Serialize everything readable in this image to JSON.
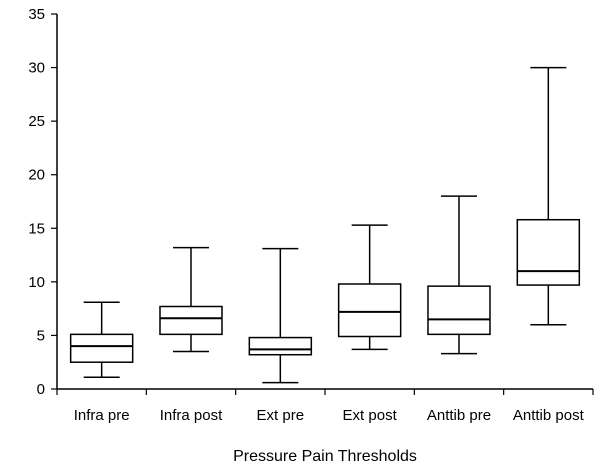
{
  "chart_data": {
    "type": "box",
    "title": "",
    "xlabel": "Pressure Pain Thresholds",
    "ylabel": "",
    "ylim": [
      0,
      35
    ],
    "yticks": [
      0,
      5,
      10,
      15,
      20,
      25,
      30,
      35
    ],
    "grid": false,
    "categories": [
      "Infra pre",
      "Infra post",
      "Ext pre",
      "Ext post",
      "Anttib pre",
      "Anttib post"
    ],
    "boxes": [
      {
        "min": 1.1,
        "q1": 2.5,
        "median": 4.0,
        "q3": 5.1,
        "max": 8.1
      },
      {
        "min": 3.5,
        "q1": 5.1,
        "median": 6.6,
        "q3": 7.7,
        "max": 13.2
      },
      {
        "min": 0.6,
        "q1": 3.2,
        "median": 3.7,
        "q3": 4.8,
        "max": 13.1
      },
      {
        "min": 3.7,
        "q1": 4.9,
        "median": 7.2,
        "q3": 9.8,
        "max": 15.3
      },
      {
        "min": 3.3,
        "q1": 5.1,
        "median": 6.5,
        "q3": 9.6,
        "max": 18.0
      },
      {
        "min": 6.0,
        "q1": 9.7,
        "median": 11.0,
        "q3": 15.8,
        "max": 30.0
      }
    ]
  }
}
